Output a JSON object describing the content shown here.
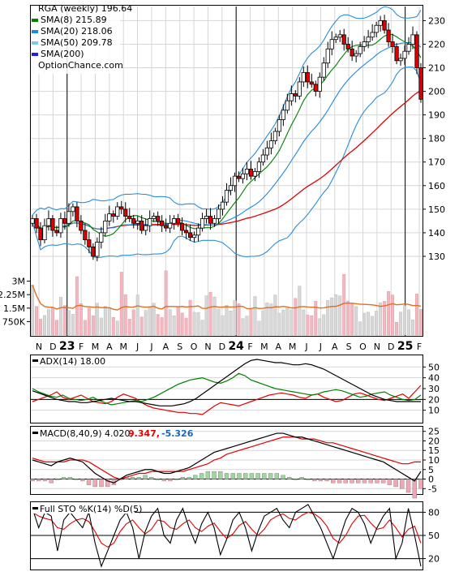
{
  "chart_data": [
    {
      "type": "candlestick",
      "panel": "price",
      "title": "RGA (weekly) 196.64",
      "watermark": "OptionChance.com",
      "ylim": [
        120,
        236
      ],
      "yticks": [
        130,
        140,
        150,
        160,
        170,
        180,
        190,
        200,
        210,
        220,
        230
      ],
      "x_labels": [
        {
          "text": "N",
          "year": false
        },
        {
          "text": "D",
          "year": false
        },
        {
          "text": "23",
          "year": true
        },
        {
          "text": "F",
          "year": false
        },
        {
          "text": "M",
          "year": false
        },
        {
          "text": "A",
          "year": false
        },
        {
          "text": "M",
          "year": false
        },
        {
          "text": "J",
          "year": false
        },
        {
          "text": "J",
          "year": false
        },
        {
          "text": "A",
          "year": false
        },
        {
          "text": "S",
          "year": false
        },
        {
          "text": "O",
          "year": false
        },
        {
          "text": "N",
          "year": false
        },
        {
          "text": "D",
          "year": false
        },
        {
          "text": "24",
          "year": true
        },
        {
          "text": "F",
          "year": false
        },
        {
          "text": "M",
          "year": false
        },
        {
          "text": "A",
          "year": false
        },
        {
          "text": "M",
          "year": false
        },
        {
          "text": "J",
          "year": false
        },
        {
          "text": "J",
          "year": false
        },
        {
          "text": "A",
          "year": false
        },
        {
          "text": "S",
          "year": false
        },
        {
          "text": "O",
          "year": false
        },
        {
          "text": "N",
          "year": false
        },
        {
          "text": "D",
          "year": false
        },
        {
          "text": "25",
          "year": true
        },
        {
          "text": "F",
          "year": false
        }
      ],
      "series": [
        {
          "name": "SMA(8) 215.89",
          "color": "#008000"
        },
        {
          "name": "SMA(20) 218.06",
          "color": "#1e88e5"
        },
        {
          "name": "SMA(50) 209.78",
          "color": "#7ec8f0"
        },
        {
          "name": "SMA(200)",
          "color": "#1a1aff"
        }
      ],
      "close": [
        146,
        142,
        137,
        143,
        146,
        141,
        140,
        146,
        144,
        149,
        151,
        145,
        141,
        137,
        134,
        130,
        136,
        140,
        145,
        148,
        147,
        151,
        150,
        147,
        146,
        144,
        145,
        141,
        143,
        146,
        147,
        145,
        143,
        142,
        144,
        146,
        144,
        141,
        140,
        138,
        139,
        142,
        146,
        147,
        144,
        146,
        150,
        153,
        158,
        160,
        164,
        163,
        165,
        167,
        164,
        166,
        170,
        173,
        176,
        179,
        183,
        188,
        192,
        196,
        199,
        198,
        204,
        208,
        204,
        203,
        200,
        206,
        212,
        218,
        222,
        223,
        224,
        220,
        218,
        215,
        216,
        219,
        221,
        223,
        225,
        228,
        230,
        226,
        221,
        219,
        213,
        214,
        217,
        220,
        224,
        210,
        196.64
      ],
      "volume_ylim": [
        0,
        4200000
      ],
      "volume_ticks": [
        "3M",
        "2.25M",
        "1.5M",
        "750K"
      ],
      "volume_tick_values": [
        3000000,
        2250000,
        1500000,
        750000
      ]
    },
    {
      "type": "line",
      "panel": "adx",
      "title": "ADX(14) 18.00",
      "ylim": [
        0,
        60
      ],
      "yticks": [
        10,
        20,
        30,
        40,
        50
      ],
      "series": [
        {
          "name": "ADX(14)",
          "color": "#000000",
          "values": [
            28,
            26,
            24,
            22,
            20,
            19,
            18,
            18,
            17,
            17,
            18,
            19,
            20,
            21,
            20,
            19,
            18,
            18,
            17,
            16,
            15,
            14,
            14,
            14,
            15,
            16,
            18,
            21,
            25,
            29,
            33,
            37,
            41,
            45,
            49,
            53,
            56,
            57,
            56,
            55,
            54,
            54,
            53,
            52,
            52,
            53,
            52,
            50,
            48,
            45,
            42,
            39,
            36,
            33,
            30,
            27,
            24,
            22,
            20,
            19,
            18,
            18,
            18,
            18,
            18
          ]
        },
        {
          "name": "+DI",
          "color": "#008000",
          "values": [
            30,
            27,
            25,
            23,
            22,
            24,
            21,
            20,
            19,
            20,
            22,
            19,
            17,
            15,
            16,
            17,
            18,
            19,
            18,
            20,
            22,
            25,
            28,
            31,
            34,
            36,
            38,
            39,
            40,
            38,
            36,
            35,
            37,
            40,
            44,
            42,
            38,
            36,
            34,
            32,
            30,
            29,
            28,
            27,
            26,
            25,
            24,
            25,
            27,
            28,
            29,
            28,
            26,
            24,
            22,
            23,
            25,
            26,
            27,
            24,
            22,
            20,
            19,
            20,
            24
          ]
        },
        {
          "name": "-DI",
          "color": "#e00000",
          "values": [
            18,
            20,
            22,
            24,
            27,
            22,
            20,
            22,
            24,
            21,
            18,
            17,
            16,
            18,
            22,
            25,
            23,
            21,
            17,
            14,
            12,
            11,
            10,
            9,
            8,
            8,
            7,
            7,
            6,
            10,
            14,
            17,
            16,
            15,
            14,
            16,
            18,
            20,
            22,
            24,
            25,
            26,
            25,
            24,
            22,
            21,
            24,
            25,
            22,
            20,
            18,
            19,
            22,
            25,
            26,
            24,
            22,
            20,
            19,
            21,
            23,
            25,
            21,
            27,
            33
          ]
        }
      ]
    },
    {
      "type": "line",
      "panel": "macd",
      "title": "MACD(8,40,9) 4.020,",
      "subtitle_values": [
        "9.347,",
        "-5.326"
      ],
      "ylim": [
        -7,
        27
      ],
      "yticks": [
        -5,
        0,
        5,
        10,
        15,
        20,
        25
      ],
      "series": [
        {
          "name": "MACD",
          "color": "#000000",
          "values": [
            10,
            9,
            8,
            7,
            9,
            10,
            11,
            10,
            9,
            6,
            3,
            1,
            -1,
            -2,
            0,
            2,
            3,
            4,
            5,
            5,
            4,
            3,
            3,
            4,
            5,
            6,
            8,
            10,
            12,
            14,
            15,
            16,
            17,
            18,
            19,
            20,
            21,
            22,
            23,
            24,
            24,
            23,
            22,
            22,
            21,
            20,
            19,
            18,
            17,
            16,
            15,
            14,
            13,
            12,
            11,
            10,
            9,
            7,
            5,
            3,
            1,
            -1,
            4
          ]
        },
        {
          "name": "Signal",
          "color": "#e00000",
          "values": [
            11,
            10,
            9,
            9,
            9,
            9,
            10,
            10,
            10,
            9,
            7,
            5,
            3,
            1,
            0,
            1,
            2,
            3,
            3,
            4,
            4,
            4,
            4,
            4,
            4,
            5,
            6,
            7,
            8,
            10,
            11,
            13,
            14,
            15,
            16,
            17,
            18,
            19,
            20,
            21,
            22,
            22,
            22,
            21,
            21,
            21,
            20,
            19,
            19,
            18,
            17,
            16,
            15,
            14,
            13,
            12,
            11,
            10,
            9,
            8,
            8,
            9,
            9
          ]
        },
        {
          "name": "Histogram",
          "color": "#8fcf8f",
          "values": [
            -1,
            -1,
            -1,
            -2,
            0,
            1,
            1,
            0,
            -1,
            -3,
            -4,
            -4,
            -4,
            -3,
            0,
            1,
            1,
            1,
            2,
            1,
            0,
            -1,
            -1,
            0,
            1,
            1,
            2,
            3,
            4,
            4,
            4,
            3,
            3,
            3,
            3,
            3,
            3,
            3,
            3,
            3,
            2,
            1,
            0,
            1,
            0,
            -1,
            -1,
            -1,
            -2,
            -2,
            -2,
            -2,
            -2,
            -2,
            -2,
            -2,
            -2,
            -3,
            -4,
            -5,
            -7,
            -10,
            -5
          ]
        }
      ]
    },
    {
      "type": "line",
      "panel": "stochastic",
      "title": "Full STO %K(14) %D(5)",
      "ylim": [
        8,
        92
      ],
      "yticks": [
        20,
        50,
        80
      ],
      "series": [
        {
          "name": "%K(14)",
          "color": "#000000",
          "values": [
            85,
            60,
            80,
            75,
            30,
            70,
            80,
            70,
            60,
            80,
            40,
            10,
            30,
            50,
            70,
            80,
            60,
            20,
            55,
            75,
            85,
            50,
            40,
            70,
            85,
            60,
            40,
            65,
            80,
            60,
            25,
            45,
            70,
            80,
            60,
            30,
            55,
            75,
            80,
            85,
            70,
            60,
            80,
            85,
            90,
            75,
            60,
            40,
            20,
            45,
            70,
            85,
            80,
            65,
            40,
            60,
            75,
            85,
            20,
            40,
            85,
            50,
            10
          ]
        },
        {
          "name": "%D(5)",
          "color": "#e00000",
          "values": [
            80,
            75,
            72,
            70,
            60,
            58,
            65,
            70,
            72,
            68,
            55,
            40,
            35,
            40,
            55,
            65,
            70,
            60,
            52,
            58,
            70,
            68,
            60,
            58,
            65,
            70,
            60,
            55,
            62,
            66,
            55,
            46,
            52,
            63,
            68,
            58,
            50,
            58,
            70,
            75,
            78,
            72,
            70,
            76,
            80,
            78,
            72,
            62,
            46,
            40,
            50,
            65,
            75,
            76,
            66,
            58,
            60,
            70,
            60,
            48,
            58,
            62,
            40
          ]
        }
      ]
    }
  ]
}
